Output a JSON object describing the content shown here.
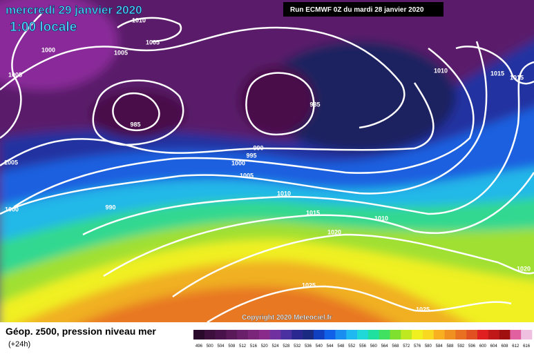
{
  "header": {
    "date": "mercredi 29 janvier 2020",
    "time": "1:00 locale",
    "run": "Run ECMWF 0Z du mardi 28 janvier 2020"
  },
  "isobar_labels": [
    1010,
    1000,
    1005,
    1005,
    1005,
    985,
    985,
    1010,
    1015,
    1015,
    1005,
    990,
    995,
    1000,
    1005,
    990,
    1000,
    1010,
    1015,
    1010,
    1020,
    1020,
    1025,
    1025
  ],
  "copyright": "Copyright 2020 Meteociel.fr",
  "legend": {
    "title": "Géop. z500, pression niveau mer",
    "subtitle": "(+24h)",
    "values": [
      496,
      500,
      504,
      508,
      512,
      516,
      520,
      524,
      528,
      532,
      536,
      540,
      544,
      548,
      552,
      556,
      560,
      564,
      568,
      572,
      576,
      580,
      584,
      588,
      592,
      596,
      600,
      604,
      608,
      612,
      616
    ],
    "colors": [
      "#2a0a2a",
      "#3c0f3c",
      "#4a124a",
      "#5a1a5a",
      "#6a1f6a",
      "#7a247a",
      "#8a2a8a",
      "#7030a0",
      "#4a30a0",
      "#2a2890",
      "#1a2a80",
      "#1040c0",
      "#1060e8",
      "#1a8ef0",
      "#20b8f0",
      "#20d8d8",
      "#20e0a0",
      "#40e060",
      "#80e030",
      "#c0e820",
      "#f0f020",
      "#f8d820",
      "#f8b020",
      "#f09020",
      "#e87020",
      "#e05020",
      "#e02020",
      "#c01818",
      "#a01010",
      "#e060a0",
      "#f0c0e0"
    ]
  }
}
